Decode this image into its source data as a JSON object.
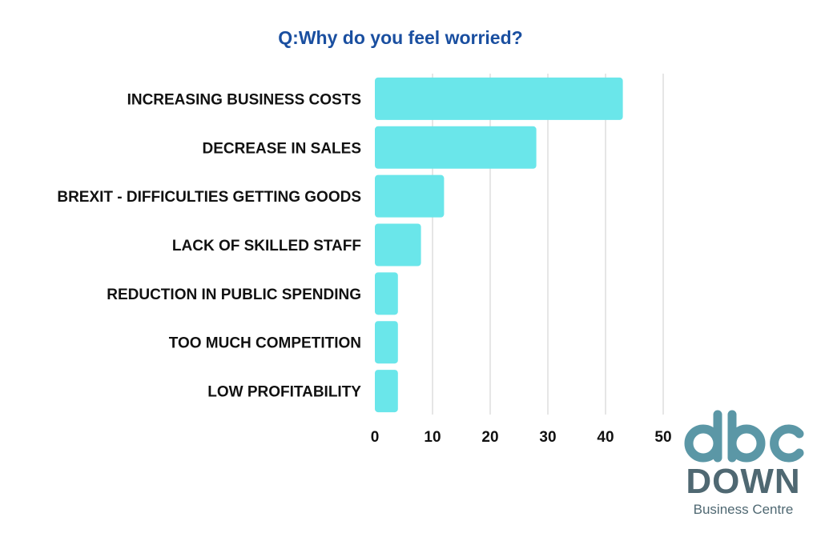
{
  "colors": {
    "bar": "#6ae6ea",
    "title": "#1a4fa0",
    "grid": "#cccccc",
    "text": "#111111",
    "logo_teal": "#5b97a6",
    "logo_text": "#4f6872"
  },
  "chart_data": {
    "type": "bar",
    "orientation": "horizontal",
    "title": "Q:Why do you feel worried?",
    "categories": [
      "INCREASING BUSINESS COSTS",
      "DECREASE IN SALES",
      "BREXIT - DIFFICULTIES GETTING GOODS",
      "LACK OF SKILLED STAFF",
      "REDUCTION IN PUBLIC SPENDING",
      "TOO MUCH COMPETITION",
      "LOW PROFITABILITY"
    ],
    "values": [
      43,
      28,
      12,
      8,
      4,
      4,
      4
    ],
    "xticks": [
      0,
      10,
      20,
      30,
      40,
      50
    ],
    "xlim": [
      0,
      50
    ],
    "xlabel": "",
    "ylabel": "",
    "grid": "vertical"
  },
  "logo": {
    "mark": "dbc",
    "name": "DOWN",
    "subtitle": "Business Centre"
  }
}
